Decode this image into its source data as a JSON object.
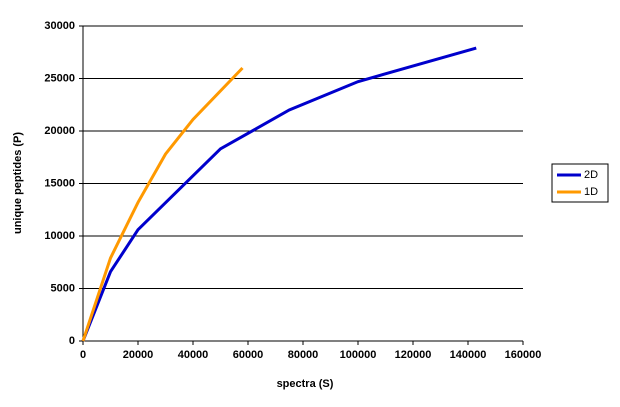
{
  "chart_data": {
    "type": "line",
    "x_label": "spectra (S)",
    "y_label": "unique peptides (P)",
    "series": [
      {
        "name": "2D",
        "color": "#0000cc",
        "x": [
          0,
          10000,
          20000,
          50000,
          75000,
          100000,
          143000
        ],
        "values": [
          0,
          6600,
          10600,
          18300,
          22000,
          24700,
          27900
        ]
      },
      {
        "name": "1D",
        "color": "#ff9900",
        "x": [
          0,
          10000,
          20000,
          30000,
          40000,
          58000
        ],
        "values": [
          0,
          7900,
          13200,
          17800,
          21100,
          26000
        ]
      }
    ],
    "xlim": [
      0,
      160000
    ],
    "xticks": [
      0,
      20000,
      40000,
      60000,
      80000,
      100000,
      120000,
      140000,
      160000
    ],
    "ylim": [
      0,
      30000
    ],
    "yticks": [
      0,
      5000,
      10000,
      15000,
      20000,
      25000,
      30000
    ],
    "grid": true,
    "legend": "right"
  }
}
